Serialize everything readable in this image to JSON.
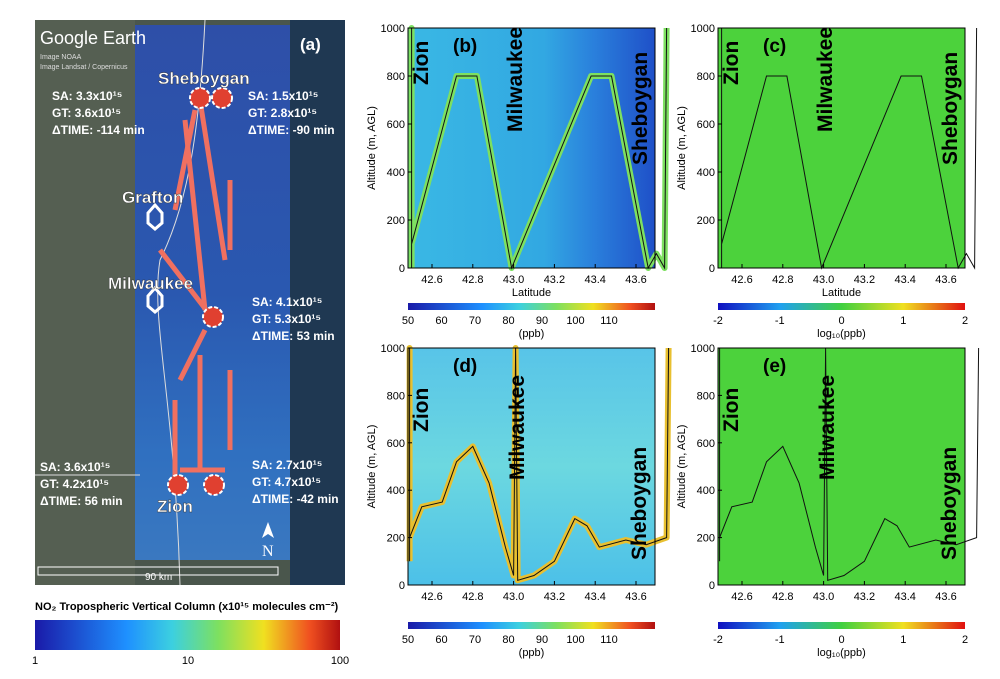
{
  "panel_a": {
    "logo": "Google Earth",
    "credits": [
      "Image NOAA",
      "Image Landsat / Copernicus"
    ],
    "label": "(a)",
    "cities": [
      "Sheboygan",
      "Grafton",
      "Milwaukee",
      "Zion"
    ],
    "annotations": [
      {
        "sa": "SA: 3.3x10¹⁵",
        "gt": "GT: 3.6x10¹⁵",
        "dt": "ΔTIME: -114 min"
      },
      {
        "sa": "SA: 1.5x10¹⁵",
        "gt": "GT: 2.8x10¹⁵",
        "dt": "ΔTIME: -90 min"
      },
      {
        "sa": "SA: 4.1x10¹⁵",
        "gt": "GT: 5.3x10¹⁵",
        "dt": "ΔTIME: 53 min"
      },
      {
        "sa": "SA: 3.6x10¹⁵",
        "gt": "GT: 4.2x10¹⁵",
        "dt": "ΔTIME: 56 min"
      },
      {
        "sa": "SA: 2.7x10¹⁵",
        "gt": "GT: 4.7x10¹⁵",
        "dt": "ΔTIME: -42 min"
      }
    ],
    "scale": "90 km",
    "north": "N",
    "colorbar": {
      "title": "NO₂ Tropospheric Vertical Column (x10¹⁵ molecules cm⁻²)",
      "ticks": [
        "1",
        "10",
        "100"
      ]
    }
  },
  "panels": [
    {
      "label": "(b)",
      "cities": [
        "Zion",
        "Milwaukee",
        "Sheboygan"
      ],
      "y_label": "Altitude (m, AGL)",
      "x_label": "Latitude",
      "yticks": [
        "0",
        "200",
        "400",
        "600",
        "800",
        "1000"
      ],
      "xticks": [
        "42.6",
        "42.8",
        "43.0",
        "43.2",
        "43.4",
        "43.6"
      ],
      "colorbar_ticks": [
        "50",
        "60",
        "70",
        "80",
        "90",
        "100",
        "110"
      ],
      "colorbar_label": "(ppb)"
    },
    {
      "label": "(c)",
      "cities": [
        "Zion",
        "Milwaukee",
        "Sheboygan"
      ],
      "y_label": "Altitude (m, AGL)",
      "x_label": "Latitude",
      "yticks": [
        "0",
        "200",
        "400",
        "600",
        "800",
        "1000"
      ],
      "xticks": [
        "42.6",
        "42.8",
        "43.0",
        "43.2",
        "43.4",
        "43.6"
      ],
      "colorbar_ticks": [
        "-2",
        "-1",
        "0",
        "1",
        "2"
      ],
      "colorbar_label": "log₁₀(ppb)"
    },
    {
      "label": "(d)",
      "cities": [
        "Zion",
        "Milwaukee",
        "Sheboygan"
      ],
      "y_label": "Altitude (m, AGL)",
      "x_label": "",
      "yticks": [
        "0",
        "200",
        "400",
        "600",
        "800",
        "1000"
      ],
      "xticks": [
        "42.6",
        "42.8",
        "43.0",
        "43.2",
        "43.4",
        "43.6"
      ],
      "colorbar_ticks": [
        "50",
        "60",
        "70",
        "80",
        "90",
        "100",
        "110"
      ],
      "colorbar_label": "(ppb)"
    },
    {
      "label": "(e)",
      "cities": [
        "Zion",
        "Milwaukee",
        "Sheboygan"
      ],
      "y_label": "Altitude (m, AGL)",
      "x_label": "",
      "yticks": [
        "0",
        "200",
        "400",
        "600",
        "800",
        "1000"
      ],
      "xticks": [
        "42.6",
        "42.8",
        "43.0",
        "43.2",
        "43.4",
        "43.6"
      ],
      "colorbar_ticks": [
        "-2",
        "-1",
        "0",
        "1",
        "2"
      ],
      "colorbar_label": "log₁₀(ppb)"
    }
  ]
}
